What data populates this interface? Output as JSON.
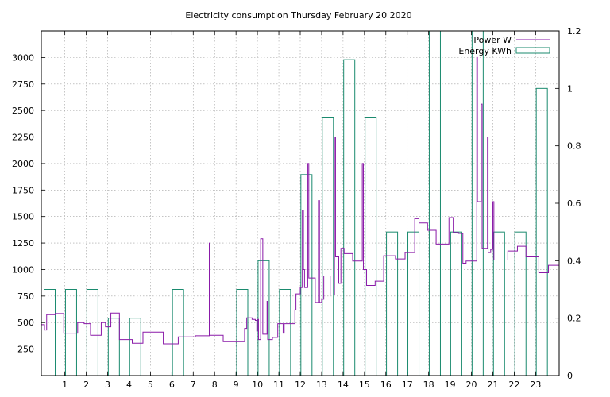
{
  "chart_data": {
    "type": "line",
    "title": "Electricity consumption Thursday February 20 2020",
    "xlabel": "",
    "ylabel": "",
    "y2label": "",
    "xlim": [
      -0.1,
      24.1
    ],
    "ylim": [
      0,
      3250
    ],
    "y2lim": [
      0,
      1.2
    ],
    "x_ticks": [
      1,
      2,
      3,
      4,
      5,
      6,
      7,
      8,
      9,
      10,
      11,
      12,
      13,
      14,
      15,
      16,
      17,
      18,
      19,
      20,
      21,
      22,
      23
    ],
    "y_ticks": [
      250,
      500,
      750,
      1000,
      1250,
      1500,
      1750,
      2000,
      2250,
      2500,
      2750,
      3000
    ],
    "y2_ticks": [
      0,
      0.2,
      0.4,
      0.6,
      0.8,
      1,
      1.2
    ],
    "grid": true,
    "legend_position": "top-right",
    "series": [
      {
        "name": "Power W",
        "color": "#8a1aa8",
        "style": "steps",
        "axis": "left",
        "points": [
          [
            -0.1,
            480
          ],
          [
            0.05,
            430
          ],
          [
            0.15,
            575
          ],
          [
            0.55,
            585
          ],
          [
            0.95,
            400
          ],
          [
            1.5,
            400
          ],
          [
            1.6,
            500
          ],
          [
            1.9,
            490
          ],
          [
            2.2,
            380
          ],
          [
            2.7,
            500
          ],
          [
            2.9,
            460
          ],
          [
            3.15,
            590
          ],
          [
            3.55,
            340
          ],
          [
            4.15,
            305
          ],
          [
            4.65,
            410
          ],
          [
            5.6,
            300
          ],
          [
            6.3,
            365
          ],
          [
            7.1,
            375
          ],
          [
            7.75,
            1250
          ],
          [
            7.78,
            380
          ],
          [
            8.4,
            320
          ],
          [
            9.4,
            445
          ],
          [
            9.5,
            545
          ],
          [
            9.75,
            530
          ],
          [
            9.9,
            520
          ],
          [
            9.97,
            420
          ],
          [
            10.0,
            530
          ],
          [
            10.05,
            340
          ],
          [
            10.15,
            1290
          ],
          [
            10.25,
            390
          ],
          [
            10.45,
            700
          ],
          [
            10.48,
            340
          ],
          [
            10.7,
            360
          ],
          [
            10.95,
            490
          ],
          [
            11.2,
            400
          ],
          [
            11.25,
            490
          ],
          [
            11.75,
            620
          ],
          [
            11.8,
            770
          ],
          [
            12.0,
            830
          ],
          [
            12.1,
            1560
          ],
          [
            12.15,
            1000
          ],
          [
            12.2,
            830
          ],
          [
            12.35,
            2000
          ],
          [
            12.4,
            920
          ],
          [
            12.7,
            690
          ],
          [
            12.85,
            1650
          ],
          [
            12.9,
            690
          ],
          [
            13.0,
            720
          ],
          [
            13.1,
            940
          ],
          [
            13.4,
            760
          ],
          [
            13.6,
            2250
          ],
          [
            13.65,
            1120
          ],
          [
            13.8,
            870
          ],
          [
            13.9,
            1200
          ],
          [
            14.05,
            1150
          ],
          [
            14.45,
            1080
          ],
          [
            14.9,
            2000
          ],
          [
            14.95,
            1000
          ],
          [
            15.1,
            850
          ],
          [
            15.5,
            890
          ],
          [
            15.9,
            1130
          ],
          [
            16.45,
            1100
          ],
          [
            16.9,
            1160
          ],
          [
            17.35,
            1480
          ],
          [
            17.55,
            1440
          ],
          [
            17.95,
            1370
          ],
          [
            18.35,
            1240
          ],
          [
            18.95,
            1490
          ],
          [
            19.15,
            1350
          ],
          [
            19.4,
            1340
          ],
          [
            19.6,
            1060
          ],
          [
            19.75,
            1080
          ],
          [
            20.25,
            3000
          ],
          [
            20.28,
            1640
          ],
          [
            20.45,
            2560
          ],
          [
            20.5,
            1200
          ],
          [
            20.75,
            2250
          ],
          [
            20.78,
            1160
          ],
          [
            20.9,
            1190
          ],
          [
            21.0,
            1640
          ],
          [
            21.05,
            1090
          ],
          [
            21.7,
            1175
          ],
          [
            22.15,
            1220
          ],
          [
            22.55,
            1120
          ],
          [
            23.15,
            970
          ],
          [
            23.6,
            1040
          ],
          [
            24.1,
            1040
          ]
        ]
      },
      {
        "name": "Energy KWh",
        "color": "#1a8a6e",
        "style": "boxes",
        "axis": "right",
        "hours": [
          0,
          1,
          2,
          3,
          4,
          5,
          6,
          7,
          8,
          9,
          10,
          11,
          12,
          13,
          14,
          15,
          16,
          17,
          18,
          19,
          20,
          21,
          22,
          23
        ],
        "values": [
          0.3,
          0.3,
          0.3,
          0.2,
          0.2,
          0,
          0.3,
          0,
          0,
          0.3,
          0.4,
          0.3,
          0.7,
          0.9,
          1.1,
          0.9,
          0.5,
          0.5,
          1.2,
          0.5,
          1.2,
          0.5,
          0.5,
          1.0
        ]
      }
    ]
  }
}
